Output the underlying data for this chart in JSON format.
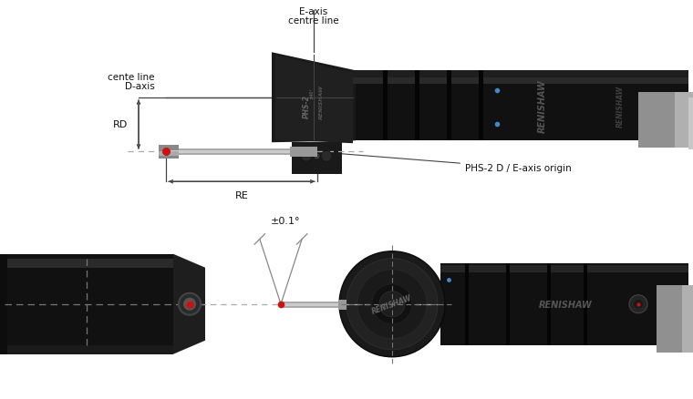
{
  "bg_color": "#ffffff",
  "fig_width": 7.6,
  "fig_height": 4.39,
  "dpi": 100,
  "colors": {
    "device_dark": "#111111",
    "device_mid": "#222222",
    "device_light": "#333333",
    "device_surface": "#282828",
    "silver": "#888888",
    "light_gray": "#cccccc",
    "mid_gray": "#aaaaaa",
    "dim_line": "#444444",
    "red_dot": "#cc1111",
    "cross_line": "#888888",
    "text_dark": "#111111",
    "white": "#ffffff",
    "blue_dot": "#4488cc",
    "head_dark": "#1a1a1a",
    "head_mid": "#232323"
  },
  "labels": {
    "eaxis": [
      "E-axis",
      "centre line"
    ],
    "daxis": [
      "D-axis",
      "cente line"
    ],
    "rd": "RD",
    "re": "RE",
    "origin": "PHS-2 D / E-axis origin",
    "angle": "±0.1°"
  }
}
